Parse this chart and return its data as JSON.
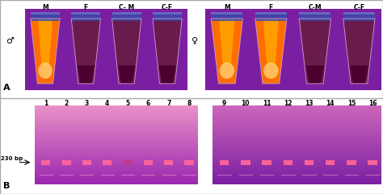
{
  "fig_width": 4.74,
  "fig_height": 2.41,
  "dpi": 100,
  "bg_color": "#ffffff",
  "border_color": "#aaaaaa",
  "panel_A": {
    "male_symbol": "♂",
    "female_symbol": "♀",
    "col_labels_left": [
      "M",
      "F",
      "C- M",
      "C-F"
    ],
    "col_labels_right": [
      "M",
      "F",
      "C-M",
      "C-F"
    ],
    "tube_bright_left": [
      true,
      false,
      false,
      false
    ],
    "tube_bright_right": [
      true,
      true,
      false,
      false
    ],
    "uv_bg": "#7B1FA2",
    "uv_bg_dark": "#4A0072",
    "tube_clear": "#B39DDB",
    "tube_orange_bright": "#FF6D00",
    "tube_orange_glow": "#FF8F00",
    "tube_dark": "#6A1B4D",
    "tube_blue_cap": "#1A237E",
    "tube_blue_cap2": "#3949AB"
  },
  "panel_B": {
    "lane_labels_left": [
      "1",
      "2",
      "3",
      "4",
      "5",
      "6",
      "7",
      "8"
    ],
    "lane_labels_right": [
      "9",
      "10",
      "11",
      "12",
      "13",
      "14",
      "15",
      "16"
    ],
    "annotation": "230 bp",
    "gel_bg_top_left": "#E991C8",
    "gel_bg_bot_left": "#9C27B0",
    "gel_bg_top_right": "#CC66BB",
    "gel_bg_bot_right": "#7B1FA2",
    "band_color_bright": "#FF6699",
    "band_color_dim": "#CC3377",
    "band_bright_left": [
      true,
      true,
      true,
      true,
      false,
      true,
      true,
      true
    ],
    "band_bright_right": [
      true,
      true,
      true,
      true,
      true,
      true,
      true,
      true
    ],
    "faint_top_color": "#FFAACC"
  }
}
